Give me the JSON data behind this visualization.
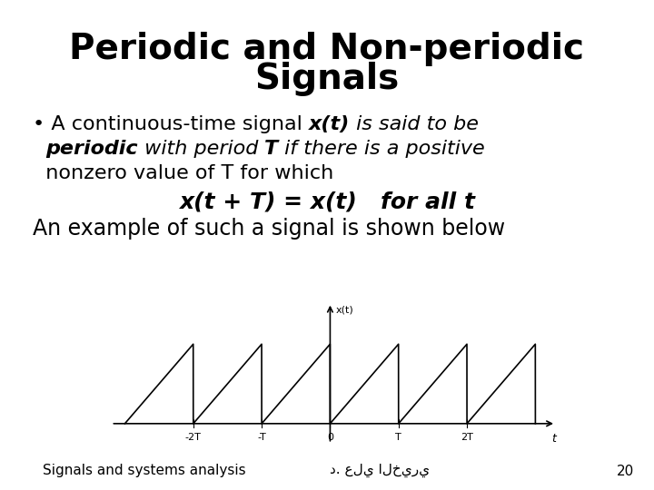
{
  "title_line1": "Periodic and Non-periodic",
  "title_line2": "Signals",
  "bullet_text_parts": [
    {
      "text": "A continuous-time signal ",
      "style": "normal"
    },
    {
      "text": "x(t)",
      "style": "bolditalic"
    },
    {
      "text": " is said to be ",
      "style": "italic"
    },
    {
      "text": "periodic",
      "style": "bolditalic"
    },
    {
      "text": " with period ",
      "style": "italic"
    },
    {
      "text": "T",
      "style": "bolditalic"
    },
    {
      "text": " if there is a positive",
      "style": "italic"
    }
  ],
  "bullet_line2": "nonzero value of T for which",
  "formula": "x(t + T) = x(t)   for all t",
  "example_text": "An example of such a signal is shown below",
  "footer_left": "Signals and systems analysis",
  "footer_arabic": "د. علي الخيري",
  "footer_page": "20",
  "background_color": "#ffffff",
  "text_color": "#000000",
  "graph_color": "#000000",
  "title_fontsize": 28,
  "body_fontsize": 16,
  "formula_fontsize": 18,
  "footer_fontsize": 11
}
